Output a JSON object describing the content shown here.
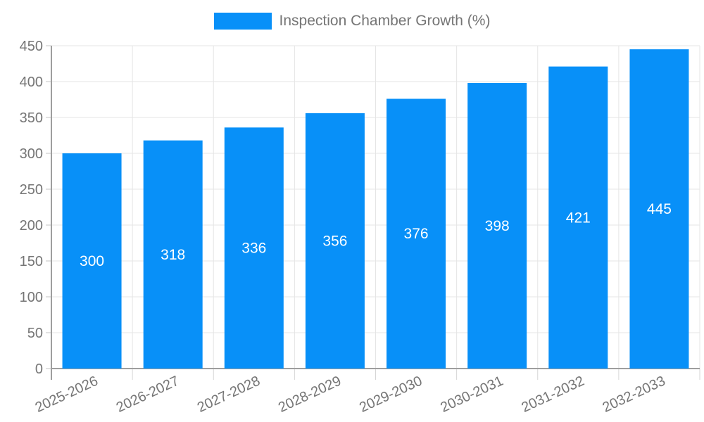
{
  "colors": {
    "bar": "#0890F8",
    "axis_line": "#9e9e9e",
    "gridline": "#e5e5e5",
    "y_tick": "#c6c6c6",
    "x_tick": "#d6d6d6",
    "label_text": "#757575",
    "value_label": "#ffffff",
    "background": "#ffffff"
  },
  "chart_data": {
    "type": "bar",
    "series_name": "Inspection Chamber Growth (%)",
    "categories": [
      "2025-2026",
      "2026-2027",
      "2027-2028",
      "2028-2029",
      "2029-2030",
      "2030-2031",
      "2031-2032",
      "2032-2033"
    ],
    "values": [
      300,
      318,
      336,
      356,
      376,
      398,
      421,
      445
    ],
    "title": "",
    "xlabel": "",
    "ylabel": "",
    "ylim": [
      0,
      450
    ],
    "ytick_step": 50,
    "yticks": [
      0,
      50,
      100,
      150,
      200,
      250,
      300,
      350,
      400,
      450
    ],
    "grid": true,
    "legend_position": "top-center",
    "value_label_position": "inside-center",
    "x_label_rotation_deg": -25
  }
}
